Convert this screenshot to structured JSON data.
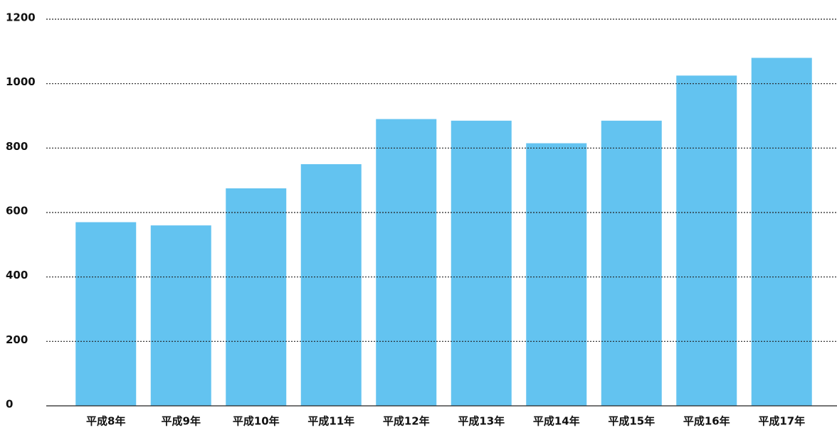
{
  "chart_data": {
    "type": "bar",
    "categories": [
      "平成8年",
      "平成9年",
      "平成10年",
      "平成11年",
      "平成12年",
      "平成13年",
      "平成14年",
      "平成15年",
      "平成16年",
      "平成17年"
    ],
    "values": [
      570,
      560,
      675,
      750,
      890,
      885,
      815,
      885,
      1025,
      1080
    ],
    "color": "#63c3f0",
    "ylim": [
      0,
      1200
    ],
    "yticks": [
      0,
      200,
      400,
      600,
      800,
      1000,
      1200
    ],
    "grid": true
  }
}
